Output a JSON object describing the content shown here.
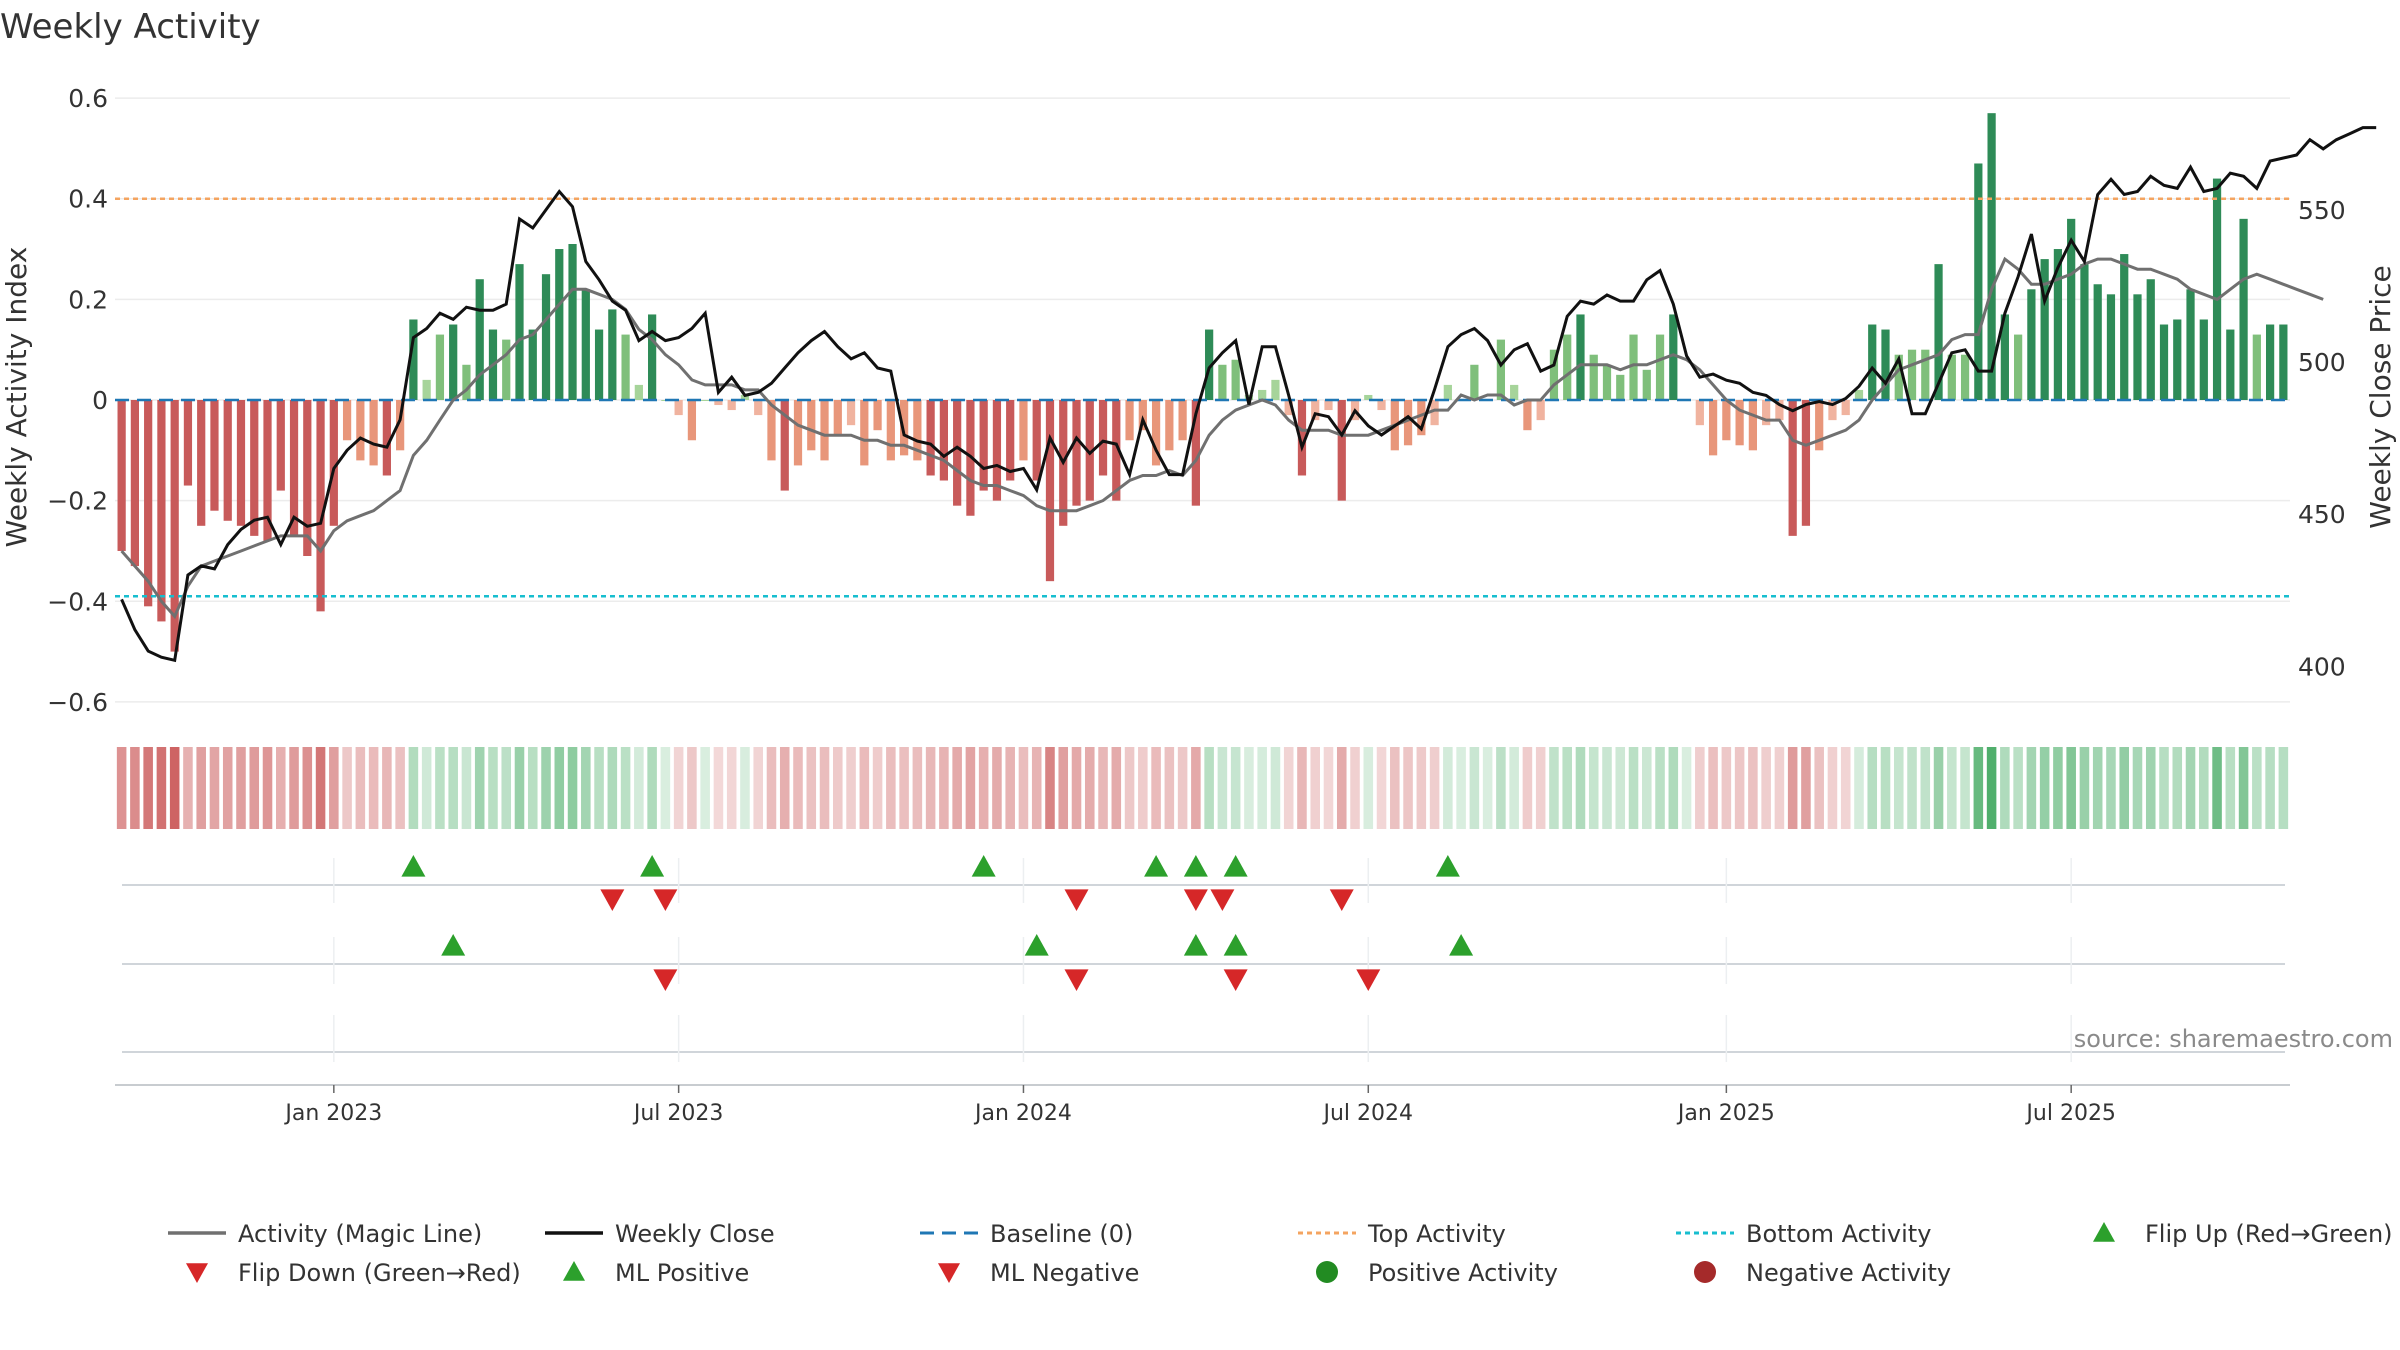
{
  "chart_data": {
    "type": "bar",
    "title": "Weekly Activity",
    "ylabel": "Weekly Activity Index",
    "ylabel_right": "Weekly Close Price",
    "ylim": [
      -0.62,
      0.62
    ],
    "y2lim": [
      385,
      590
    ],
    "yticks": [
      {
        "v": 0.6,
        "label": "0.6"
      },
      {
        "v": 0.4,
        "label": "0.4"
      },
      {
        "v": 0.2,
        "label": "0.2"
      },
      {
        "v": 0,
        "label": "0"
      },
      {
        "v": -0.2,
        "label": "−0.2"
      },
      {
        "v": -0.4,
        "label": "−0.4"
      },
      {
        "v": -0.6,
        "label": "−0.6"
      }
    ],
    "y2ticks": [
      {
        "v": 550,
        "label": "550"
      },
      {
        "v": 500,
        "label": "500"
      },
      {
        "v": 450,
        "label": "450"
      },
      {
        "v": 400,
        "label": "400"
      }
    ],
    "xticks": [
      {
        "week": 16,
        "label": "Jan 2023"
      },
      {
        "week": 42,
        "label": "Jul 2023"
      },
      {
        "week": 68,
        "label": "Jan 2024"
      },
      {
        "week": 94,
        "label": "Jul 2024"
      },
      {
        "week": 121,
        "label": "Jan 2025"
      },
      {
        "week": 147,
        "label": "Jul 2025"
      }
    ],
    "top_activity": 0.4,
    "bottom_activity": -0.39,
    "source": "source: sharemaestro.com",
    "activity": [
      -0.3,
      -0.33,
      -0.41,
      -0.44,
      -0.5,
      -0.17,
      -0.25,
      -0.22,
      -0.24,
      -0.25,
      -0.27,
      -0.28,
      -0.18,
      -0.27,
      -0.31,
      -0.42,
      -0.25,
      -0.08,
      -0.12,
      -0.13,
      -0.15,
      -0.1,
      0.16,
      0.04,
      0.13,
      0.15,
      0.07,
      0.24,
      0.14,
      0.12,
      0.27,
      0.14,
      0.25,
      0.3,
      0.31,
      0.22,
      0.14,
      0.18,
      0.13,
      0.03,
      0.17,
      0.0,
      -0.03,
      -0.08,
      0.0,
      -0.01,
      -0.02,
      0.01,
      -0.03,
      -0.12,
      -0.18,
      -0.13,
      -0.1,
      -0.12,
      -0.07,
      -0.05,
      -0.13,
      -0.06,
      -0.12,
      -0.11,
      -0.12,
      -0.15,
      -0.16,
      -0.21,
      -0.23,
      -0.18,
      -0.2,
      -0.16,
      -0.12,
      -0.16,
      -0.36,
      -0.25,
      -0.21,
      -0.2,
      -0.15,
      -0.2,
      -0.08,
      -0.06,
      -0.13,
      -0.1,
      -0.08,
      -0.21,
      0.14,
      0.07,
      0.08,
      0.01,
      0.02,
      0.04,
      -0.03,
      -0.15,
      -0.04,
      -0.02,
      -0.2,
      -0.04,
      0.01,
      -0.02,
      -0.1,
      -0.09,
      -0.07,
      -0.05,
      0.03,
      0.0,
      0.07,
      0.0,
      0.12,
      0.03,
      -0.06,
      -0.04,
      0.1,
      0.13,
      0.17,
      0.09,
      0.07,
      0.05,
      0.13,
      0.06,
      0.13,
      0.17,
      0.0,
      -0.05,
      -0.11,
      -0.08,
      -0.09,
      -0.1,
      -0.05,
      -0.04,
      -0.27,
      -0.25,
      -0.1,
      -0.04,
      -0.03,
      0.02,
      0.15,
      0.14,
      0.09,
      0.1,
      0.1,
      0.27,
      0.09,
      0.09,
      0.47,
      0.57,
      0.17,
      0.13,
      0.22,
      0.28,
      0.3,
      0.36,
      0.27,
      0.23,
      0.21,
      0.29,
      0.21,
      0.24,
      0.15,
      0.16,
      0.22,
      0.16,
      0.44,
      0.14,
      0.36,
      0.13,
      0.15,
      0.15
    ],
    "magic_line": [
      -0.3,
      -0.33,
      -0.36,
      -0.4,
      -0.43,
      -0.37,
      -0.33,
      -0.32,
      -0.31,
      -0.3,
      -0.29,
      -0.28,
      -0.27,
      -0.27,
      -0.27,
      -0.3,
      -0.26,
      -0.24,
      -0.23,
      -0.22,
      -0.2,
      -0.18,
      -0.11,
      -0.08,
      -0.04,
      0.0,
      0.02,
      0.05,
      0.07,
      0.09,
      0.12,
      0.13,
      0.16,
      0.19,
      0.22,
      0.22,
      0.21,
      0.2,
      0.18,
      0.14,
      0.12,
      0.09,
      0.07,
      0.04,
      0.03,
      0.03,
      0.03,
      0.02,
      0.02,
      -0.01,
      -0.03,
      -0.05,
      -0.06,
      -0.07,
      -0.07,
      -0.07,
      -0.08,
      -0.08,
      -0.09,
      -0.09,
      -0.1,
      -0.11,
      -0.12,
      -0.14,
      -0.16,
      -0.17,
      -0.17,
      -0.18,
      -0.19,
      -0.21,
      -0.22,
      -0.22,
      -0.22,
      -0.21,
      -0.2,
      -0.18,
      -0.16,
      -0.15,
      -0.15,
      -0.14,
      -0.15,
      -0.12,
      -0.07,
      -0.04,
      -0.02,
      -0.01,
      0.0,
      -0.01,
      -0.04,
      -0.06,
      -0.06,
      -0.06,
      -0.07,
      -0.07,
      -0.07,
      -0.06,
      -0.05,
      -0.04,
      -0.03,
      -0.02,
      -0.02,
      0.01,
      0.0,
      0.01,
      0.01,
      -0.01,
      0.0,
      0.0,
      0.03,
      0.05,
      0.07,
      0.07,
      0.07,
      0.06,
      0.07,
      0.07,
      0.08,
      0.09,
      0.08,
      0.06,
      0.03,
      0.0,
      -0.02,
      -0.03,
      -0.04,
      -0.04,
      -0.08,
      -0.09,
      -0.08,
      -0.07,
      -0.06,
      -0.04,
      0.0,
      0.03,
      0.06,
      0.07,
      0.08,
      0.09,
      0.12,
      0.13,
      0.13,
      0.22,
      0.28,
      0.26,
      0.23,
      0.23,
      0.24,
      0.25,
      0.27,
      0.28,
      0.28,
      0.27,
      0.26,
      0.26,
      0.25,
      0.24,
      0.22,
      0.21,
      0.2,
      0.22,
      0.24,
      0.25,
      0.24,
      0.23,
      0.22,
      0.21,
      0.2
    ],
    "weekly_close": [
      422,
      412,
      405,
      403,
      402,
      430,
      433,
      432,
      440,
      445,
      448,
      449,
      440,
      449,
      446,
      447,
      465,
      471,
      475,
      473,
      472,
      481,
      508,
      511,
      516,
      514,
      518,
      517,
      517,
      519,
      547,
      544,
      550,
      556,
      551,
      533,
      527,
      520,
      517,
      507,
      510,
      507,
      508,
      511,
      516,
      490,
      495,
      489,
      490,
      493,
      498,
      503,
      507,
      510,
      505,
      501,
      503,
      498,
      497,
      476,
      474,
      473,
      469,
      472,
      469,
      465,
      466,
      464,
      465,
      458,
      475,
      467,
      475,
      470,
      474,
      473,
      463,
      481,
      471,
      463,
      463,
      483,
      498,
      503,
      507,
      486,
      505,
      505,
      489,
      472,
      483,
      482,
      476,
      484,
      479,
      476,
      479,
      482,
      478,
      491,
      505,
      509,
      511,
      507,
      499,
      504,
      506,
      497,
      499,
      515,
      520,
      519,
      522,
      520,
      520,
      527,
      530,
      519,
      502,
      495,
      496,
      494,
      493,
      490,
      489,
      486,
      484,
      486,
      487,
      486,
      488,
      492,
      498,
      493,
      501,
      483,
      483,
      493,
      503,
      504,
      497,
      497,
      516,
      528,
      542,
      520,
      531,
      540,
      533,
      555,
      560,
      555,
      556,
      561,
      558,
      557,
      564,
      556,
      557,
      562,
      561,
      557,
      566,
      567,
      568,
      573,
      570,
      573,
      575,
      577,
      577
    ],
    "heat_strip_note": "weekly activity heat strip",
    "signal_rows": [
      {
        "name": "flip",
        "up": [
          22,
          40,
          65,
          78,
          81,
          84,
          100
        ],
        "down": [
          37,
          41,
          72,
          81,
          83,
          92
        ]
      },
      {
        "name": "ml",
        "up": [
          25,
          69,
          81,
          84,
          101
        ],
        "down": [
          41,
          72,
          84,
          94
        ]
      }
    ],
    "legend": [
      {
        "id": "activity-magic-line",
        "label": "Activity (Magic Line)",
        "kind": "line",
        "color": "#707070"
      },
      {
        "id": "weekly-close",
        "label": "Weekly Close",
        "kind": "line",
        "color": "#111111"
      },
      {
        "id": "baseline",
        "label": "Baseline (0)",
        "kind": "dashed",
        "color": "#1f77b4"
      },
      {
        "id": "top-activity",
        "label": "Top Activity",
        "kind": "dotted",
        "color": "#f4a460"
      },
      {
        "id": "bottom-activity",
        "label": "Bottom Activity",
        "kind": "dotted",
        "color": "#17becf"
      },
      {
        "id": "flip-up",
        "label": "Flip Up (Red→Green)",
        "kind": "tri-up",
        "color": "#2ca02c"
      },
      {
        "id": "flip-down",
        "label": "Flip Down (Green→Red)",
        "kind": "tri-down",
        "color": "#d62728"
      },
      {
        "id": "ml-positive",
        "label": "ML Positive",
        "kind": "tri-up",
        "color": "#2ca02c"
      },
      {
        "id": "ml-negative",
        "label": "ML Negative",
        "kind": "tri-down",
        "color": "#d62728"
      },
      {
        "id": "positive-activity",
        "label": "Positive Activity",
        "kind": "dot",
        "color": "#228b22"
      },
      {
        "id": "negative-activity",
        "label": "Negative Activity",
        "kind": "dot",
        "color": "#a52a2a"
      }
    ]
  }
}
